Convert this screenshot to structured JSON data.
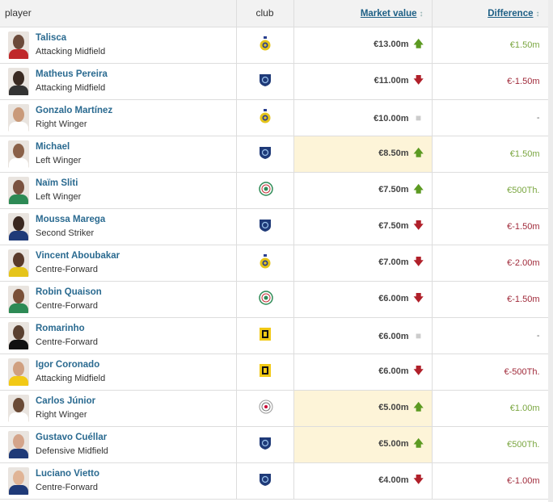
{
  "header": {
    "player": "player",
    "club": "club",
    "market_value": "Market value",
    "difference": "Difference",
    "sort_icon": "↕"
  },
  "colors": {
    "up": "#5c9a22",
    "down": "#b0202a",
    "highlight": "#fdf4d8",
    "name": "#2a6a90"
  },
  "rows": [
    {
      "name": "Talisca",
      "position": "Attacking Midfield",
      "club": "Al-Nassr",
      "value": "€13.00m",
      "trend": "up",
      "diff": "€1.50m",
      "highlight": false
    },
    {
      "name": "Matheus Pereira",
      "position": "Attacking Midfield",
      "club": "Al-Hilal",
      "value": "€11.00m",
      "trend": "down",
      "diff": "€-1.50m",
      "highlight": false
    },
    {
      "name": "Gonzalo Martínez",
      "position": "Right Winger",
      "club": "Al-Nassr",
      "value": "€10.00m",
      "trend": "same",
      "diff": "-",
      "highlight": false
    },
    {
      "name": "Michael",
      "position": "Left Winger",
      "club": "Al-Hilal",
      "value": "€8.50m",
      "trend": "up",
      "diff": "€1.50m",
      "highlight": true
    },
    {
      "name": "Naïm Sliti",
      "position": "Left Winger",
      "club": "Al-Ettifaq",
      "value": "€7.50m",
      "trend": "up",
      "diff": "€500Th.",
      "highlight": false
    },
    {
      "name": "Moussa Marega",
      "position": "Second Striker",
      "club": "Al-Hilal",
      "value": "€7.50m",
      "trend": "down",
      "diff": "€-1.50m",
      "highlight": false
    },
    {
      "name": "Vincent Aboubakar",
      "position": "Centre-Forward",
      "club": "Al-Nassr",
      "value": "€7.00m",
      "trend": "down",
      "diff": "€-2.00m",
      "highlight": false
    },
    {
      "name": "Robin Quaison",
      "position": "Centre-Forward",
      "club": "Al-Ettifaq",
      "value": "€6.00m",
      "trend": "down",
      "diff": "€-1.50m",
      "highlight": false
    },
    {
      "name": "Romarinho",
      "position": "Centre-Forward",
      "club": "Al-Ittihad",
      "value": "€6.00m",
      "trend": "same",
      "diff": "-",
      "highlight": false
    },
    {
      "name": "Igor Coronado",
      "position": "Attacking Midfield",
      "club": "Al-Ittihad",
      "value": "€6.00m",
      "trend": "down",
      "diff": "€-500Th.",
      "highlight": false
    },
    {
      "name": "Carlos Júnior",
      "position": "Right Winger",
      "club": "Al-Shabab",
      "value": "€5.00m",
      "trend": "up",
      "diff": "€1.00m",
      "highlight": true
    },
    {
      "name": "Gustavo Cuéllar",
      "position": "Defensive Midfield",
      "club": "Al-Hilal",
      "value": "€5.00m",
      "trend": "up",
      "diff": "€500Th.",
      "highlight": true
    },
    {
      "name": "Luciano Vietto",
      "position": "Centre-Forward",
      "club": "Al-Hilal",
      "value": "€4.00m",
      "trend": "down",
      "diff": "€-1.00m",
      "highlight": false
    }
  ]
}
